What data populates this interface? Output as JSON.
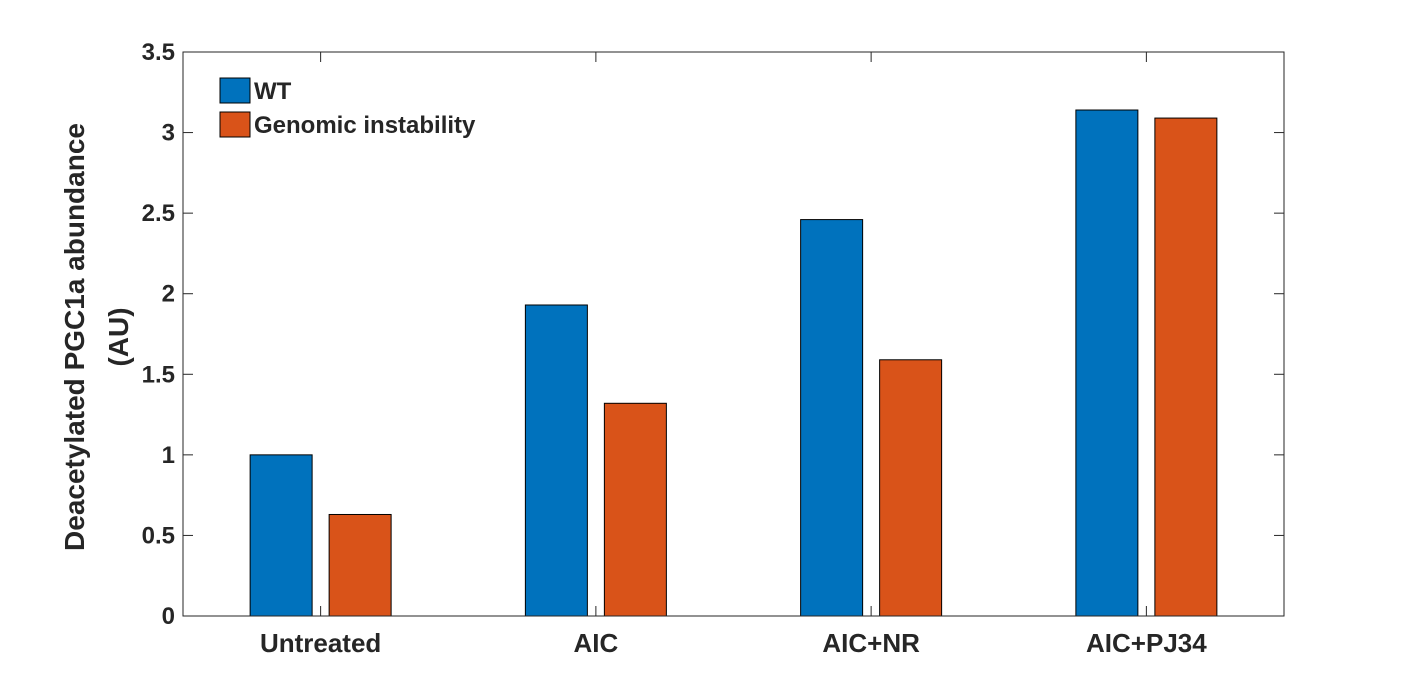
{
  "chart_data": {
    "type": "bar",
    "title": "",
    "xlabel": "",
    "ylabel_lines": [
      "Deacetylated PGC1a abundance",
      "(AU)"
    ],
    "categories": [
      "Untreated",
      "AIC",
      "AIC+NR",
      "AIC+PJ34"
    ],
    "series": [
      {
        "name": "WT",
        "color": "#0072BD",
        "values": [
          1.0,
          1.93,
          2.46,
          3.14
        ]
      },
      {
        "name": "Genomic instability",
        "color": "#D95319",
        "values": [
          0.63,
          1.32,
          1.59,
          3.09
        ]
      }
    ],
    "ylim": [
      0,
      3.5
    ],
    "yticks": [
      0,
      0.5,
      1,
      1.5,
      2,
      2.5,
      3,
      3.5
    ],
    "ytick_labels": [
      "0",
      "0.5",
      "1",
      "1.5",
      "2",
      "2.5",
      "3",
      "3.5"
    ],
    "grid": false,
    "legend_position": "top-left"
  }
}
